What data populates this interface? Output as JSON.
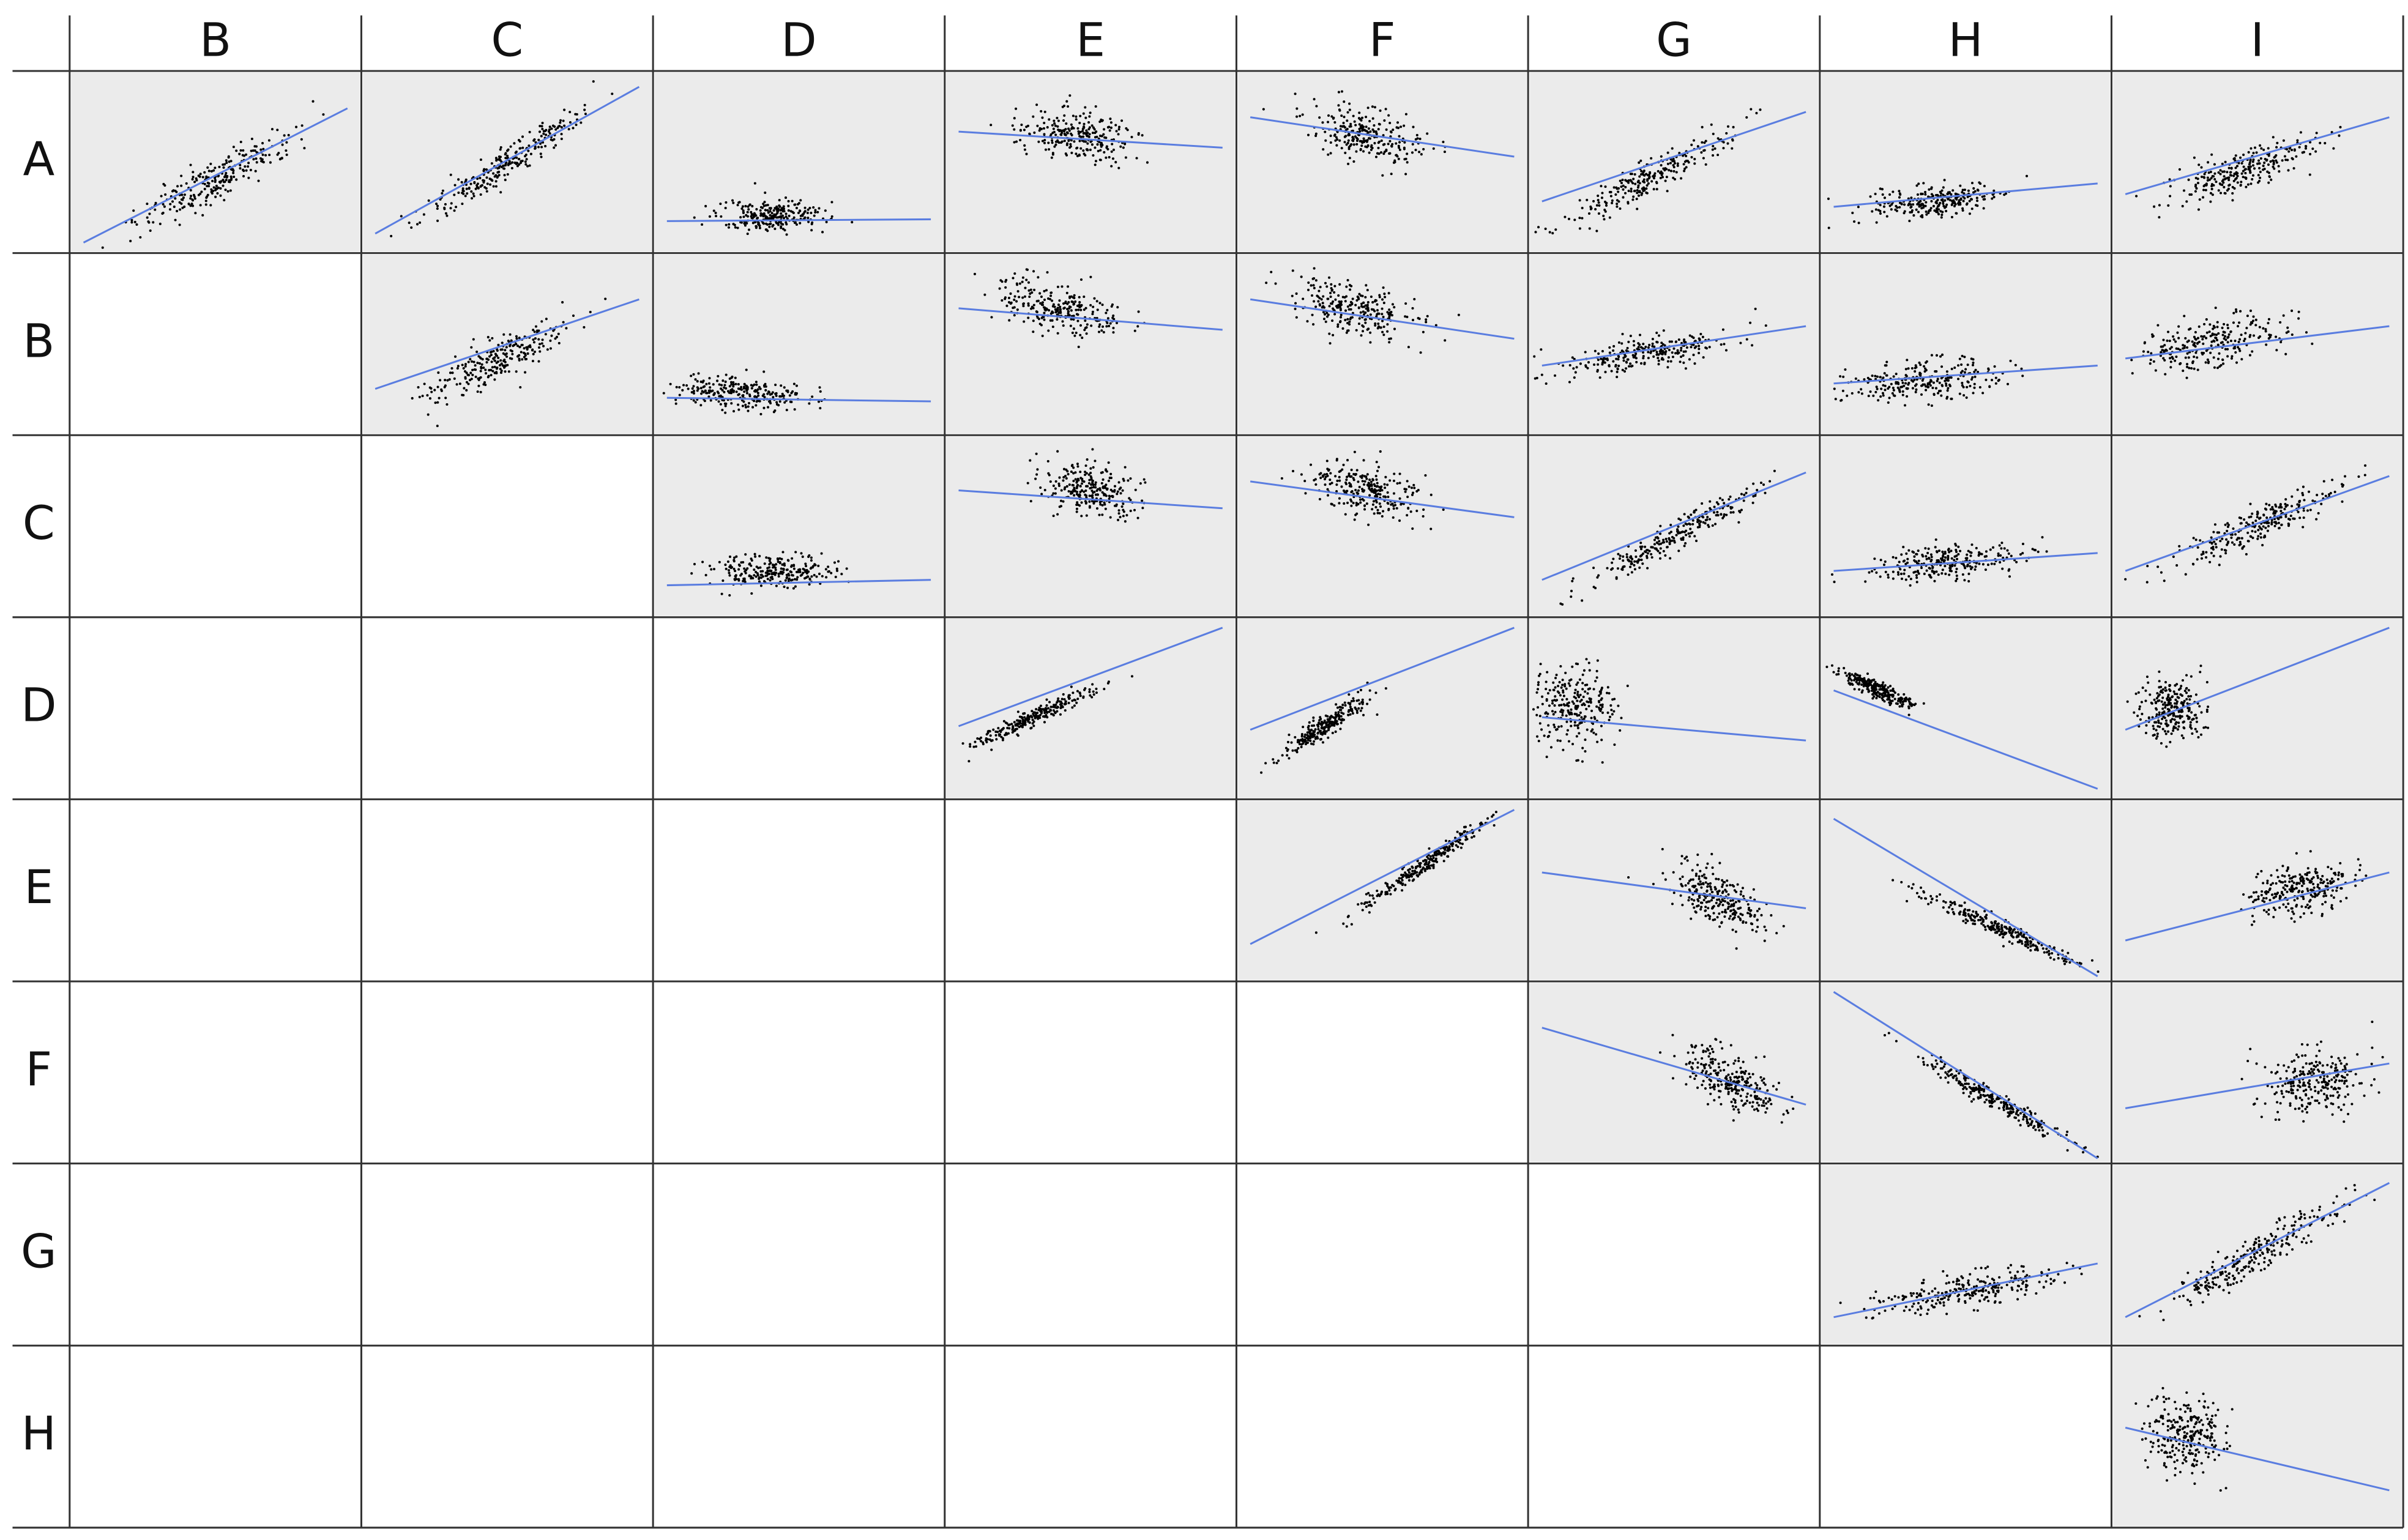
{
  "columns": [
    "B",
    "C",
    "D",
    "E",
    "F",
    "G",
    "H",
    "I"
  ],
  "rows": [
    "A",
    "B",
    "C",
    "D",
    "E",
    "F",
    "G",
    "H"
  ]
}
